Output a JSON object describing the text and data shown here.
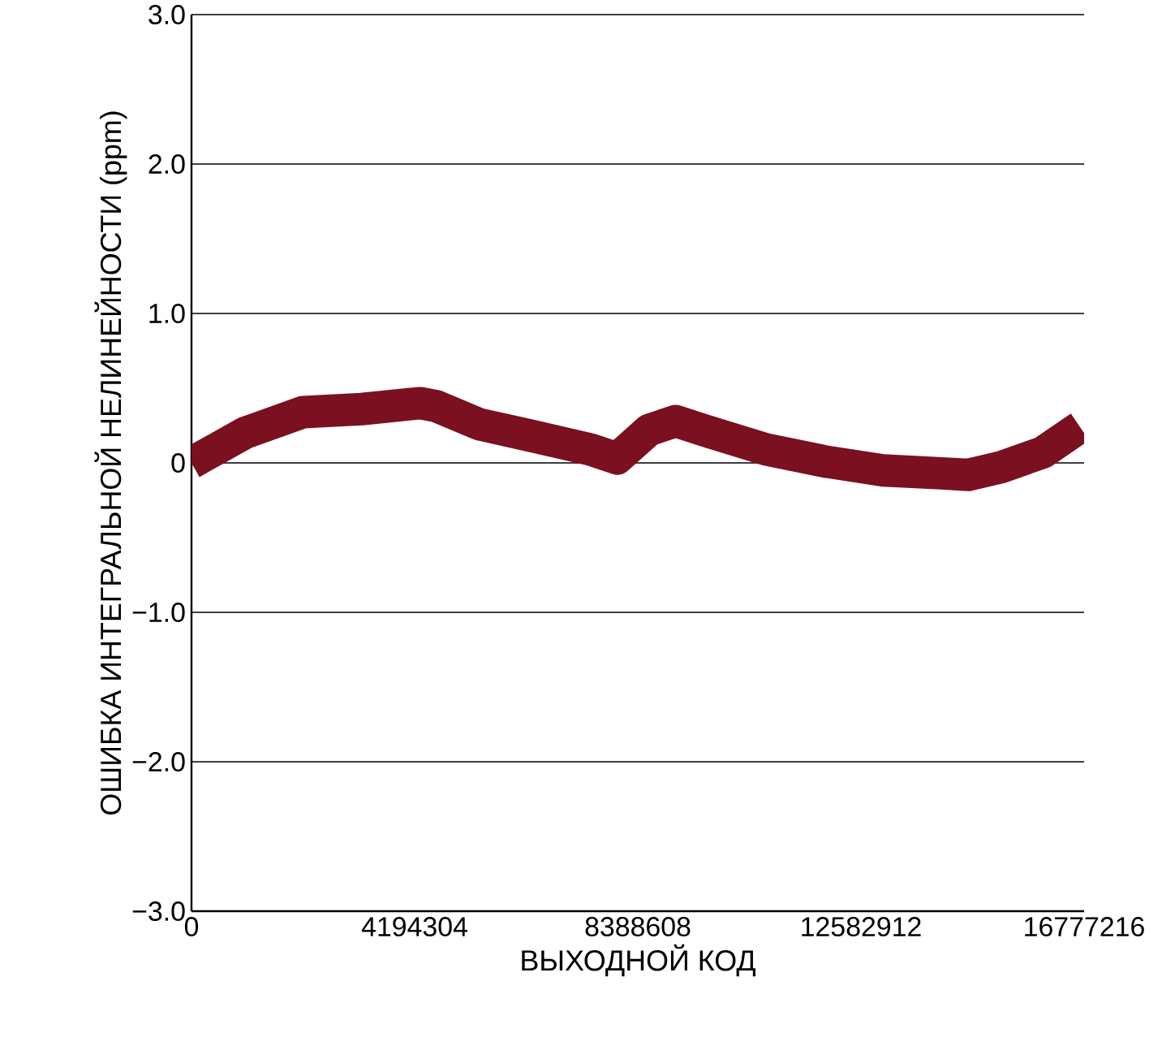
{
  "chart_data": {
    "type": "line",
    "xlabel": "ВЫХОДНОЙ КОД",
    "ylabel": "ОШИБКА ИНТЕГРАЛЬНОЙ НЕЛИНЕЙНОСТИ (ppm)",
    "xlim": [
      0,
      16777216
    ],
    "ylim": [
      -3,
      3
    ],
    "xticks": [
      0,
      4194304,
      8388608,
      12582912,
      16777216
    ],
    "yticks": [
      {
        "value": -3,
        "label": "−3.0"
      },
      {
        "value": -2,
        "label": "−2.0"
      },
      {
        "value": -1,
        "label": "−1.0"
      },
      0,
      {
        "value": 1,
        "label": "1.0"
      },
      {
        "value": 2,
        "label": "2.0"
      },
      {
        "value": 3,
        "label": "3.0"
      }
    ],
    "grid": "y",
    "marker": "none",
    "line_style": "solid",
    "series": [
      {
        "color": "#7a1020",
        "x": [
          0,
          1000000,
          2100000,
          3200000,
          4300000,
          4600000,
          5400000,
          6400000,
          7500000,
          8000000,
          8600000,
          9100000,
          9700000,
          10800000,
          11900000,
          13000000,
          14100000,
          14600000,
          15200000,
          16000000,
          16700000
        ],
        "values": [
          0.0,
          0.2,
          0.34,
          0.36,
          0.4,
          0.38,
          0.26,
          0.18,
          0.09,
          0.03,
          0.22,
          0.28,
          0.21,
          0.09,
          0.01,
          -0.05,
          -0.07,
          -0.08,
          -0.03,
          0.07,
          0.24
        ]
      }
    ]
  }
}
